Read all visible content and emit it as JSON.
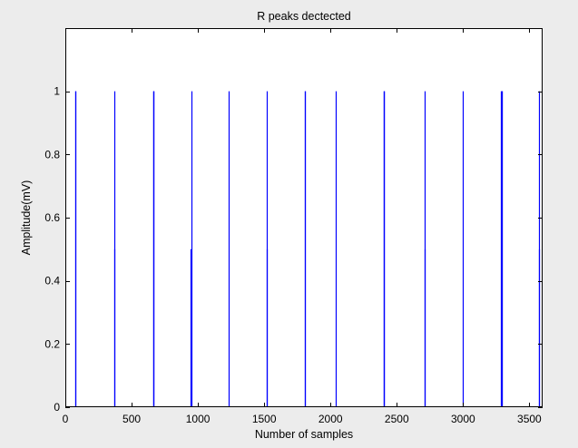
{
  "chart_data": {
    "type": "stem",
    "title": "R peaks dectected",
    "xlabel": "Number of samples",
    "ylabel": "Amplitude(mV)",
    "xlim": [
      0,
      3600
    ],
    "ylim": [
      0,
      1.2
    ],
    "xticks": [
      0,
      500,
      1000,
      1500,
      2000,
      2500,
      3000,
      3500
    ],
    "yticks": [
      0,
      0.2,
      0.4,
      0.6,
      0.8,
      1
    ],
    "xticklabels": [
      "0",
      "500",
      "1000",
      "1500",
      "2000",
      "2500",
      "3000",
      "3500"
    ],
    "yticklabels": [
      "0",
      "0.2",
      "0.4",
      "0.6",
      "0.8",
      "1"
    ],
    "grid": false,
    "series": [
      {
        "color": "#0000ff",
        "x": [
          75,
          77,
          369,
          371,
          662,
          664,
          665,
          947,
          949,
          1233,
          1517,
          1519,
          1806,
          1808,
          2042,
          2402,
          2404,
          2405,
          2707,
          2709,
          2999,
          3287,
          3289,
          3290,
          3572,
          3574
        ],
        "values": [
          1,
          1,
          1,
          0.5,
          1,
          1,
          1,
          0.5,
          1,
          1,
          1,
          0.5,
          1,
          1,
          1,
          1,
          1,
          1,
          0.5,
          1,
          1,
          1,
          1,
          1,
          0.5,
          1
        ]
      }
    ]
  }
}
